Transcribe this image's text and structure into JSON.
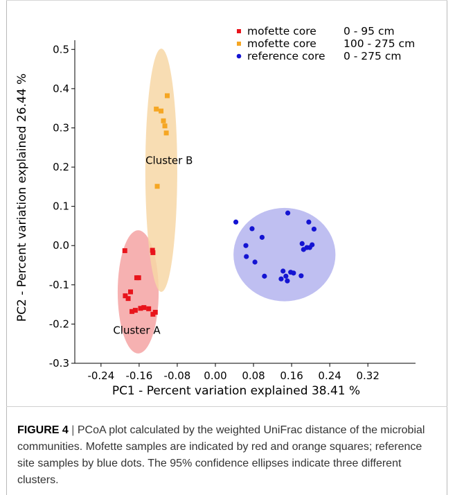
{
  "chart_data": {
    "type": "scatter",
    "xlabel": "PC1 - Percent variation explained 38.41 %",
    "ylabel": "PC2 - Percent variation explained 26.44 %",
    "xlim": [
      -0.295,
      0.42
    ],
    "ylim": [
      -0.3,
      0.58
    ],
    "xticks": [
      "-0.24",
      "-0.16",
      "-0.08",
      "0.00",
      "0.08",
      "0.16",
      "0.24",
      "0.32"
    ],
    "xtick_values": [
      -0.24,
      -0.16,
      -0.08,
      0.0,
      0.08,
      0.16,
      0.24,
      0.32
    ],
    "yticks": [
      "-0.3",
      "-0.2",
      "-0.1",
      "0.0",
      "0.1",
      "0.2",
      "0.3",
      "0.4",
      "0.5"
    ],
    "ytick_values": [
      -0.3,
      -0.2,
      -0.1,
      0.0,
      0.1,
      0.2,
      0.3,
      0.4,
      0.5
    ],
    "grid": false,
    "legend_position": "top-right",
    "series": [
      {
        "name": "mofette core",
        "range": "0 - 95 cm",
        "marker": "square",
        "color": "#e8141b",
        "points": [
          [
            -0.19,
            -0.013
          ],
          [
            -0.132,
            -0.012
          ],
          [
            -0.131,
            -0.018
          ],
          [
            -0.165,
            -0.082
          ],
          [
            -0.161,
            -0.082
          ],
          [
            -0.178,
            -0.118
          ],
          [
            -0.189,
            -0.128
          ],
          [
            -0.183,
            -0.135
          ],
          [
            -0.175,
            -0.168
          ],
          [
            -0.168,
            -0.165
          ],
          [
            -0.157,
            -0.16
          ],
          [
            -0.15,
            -0.158
          ],
          [
            -0.14,
            -0.161
          ],
          [
            -0.126,
            -0.17
          ],
          [
            -0.131,
            -0.175
          ]
        ]
      },
      {
        "name": "mofette core",
        "range": "100 - 275 cm",
        "marker": "square",
        "color": "#f5a623",
        "points": [
          [
            -0.124,
            0.348
          ],
          [
            -0.114,
            0.343
          ],
          [
            -0.109,
            0.318
          ],
          [
            -0.106,
            0.305
          ],
          [
            -0.103,
            0.287
          ],
          [
            -0.101,
            0.382
          ],
          [
            -0.122,
            0.151
          ]
        ]
      },
      {
        "name": "reference core",
        "range": "0 - 275 cm",
        "marker": "circle",
        "color": "#1414d2",
        "points": [
          [
            0.043,
            0.06
          ],
          [
            0.064,
            0.0
          ],
          [
            0.065,
            -0.028
          ],
          [
            0.077,
            0.043
          ],
          [
            0.083,
            -0.042
          ],
          [
            0.098,
            0.021
          ],
          [
            0.103,
            -0.078
          ],
          [
            0.152,
            0.083
          ],
          [
            0.138,
            -0.085
          ],
          [
            0.142,
            -0.065
          ],
          [
            0.148,
            -0.078
          ],
          [
            0.151,
            -0.09
          ],
          [
            0.158,
            -0.068
          ],
          [
            0.164,
            -0.07
          ],
          [
            0.18,
            -0.077
          ],
          [
            0.182,
            0.005
          ],
          [
            0.185,
            -0.01
          ],
          [
            0.192,
            -0.005
          ],
          [
            0.196,
            0.06
          ],
          [
            0.198,
            -0.005
          ],
          [
            0.203,
            0.002
          ],
          [
            0.207,
            0.042
          ]
        ]
      }
    ],
    "ellipses": [
      {
        "color": "#f4a3a3",
        "cx": -0.162,
        "cy": -0.118,
        "rx": 0.043,
        "ry": 0.157,
        "label": "Cluster A"
      },
      {
        "color": "#f7d7a6",
        "cx": -0.1135,
        "cy": 0.192,
        "rx": 0.0335,
        "ry": 0.31,
        "label": "Cluster B"
      },
      {
        "color": "#b4b4ee",
        "cx": 0.145,
        "cy": -0.023,
        "rx": 0.107,
        "ry": 0.119,
        "label": ""
      }
    ]
  },
  "caption": {
    "label": "FIGURE 4",
    "separator": " | ",
    "text": "PCoA plot calculated by the weighted UniFrac distance of the microbial communities. Mofette samples are indicated by red and orange squares; reference site samples by blue dots. The 95% confidence ellipses indicate three different clusters."
  }
}
